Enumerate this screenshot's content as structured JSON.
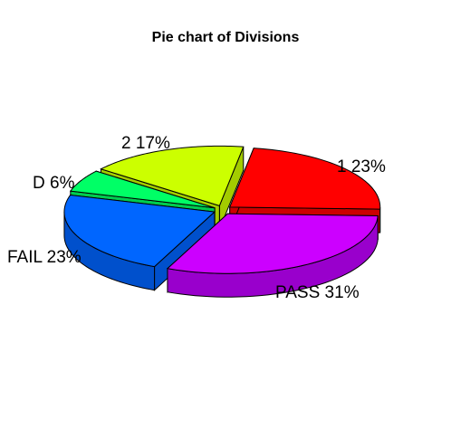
{
  "chart_data": {
    "type": "pie",
    "title": "Pie chart of Divisions",
    "slices": [
      {
        "label": "1 23%",
        "category": "1",
        "value": 23,
        "color": "#FF0000",
        "side_color": "#CC0000"
      },
      {
        "label": "PASS 31%",
        "category": "PASS",
        "value": 31,
        "color": "#CC00FF",
        "side_color": "#9900CC"
      },
      {
        "label": "FAIL 23%",
        "category": "FAIL",
        "value": 23,
        "color": "#0066FF",
        "side_color": "#0050CC"
      },
      {
        "label": "D 6%",
        "category": "D",
        "value": 6,
        "color": "#00FF66",
        "side_color": "#00CC50"
      },
      {
        "label": "2 17%",
        "category": "2",
        "value": 17,
        "color": "#CCFF00",
        "side_color": "#A3CC00"
      }
    ]
  }
}
